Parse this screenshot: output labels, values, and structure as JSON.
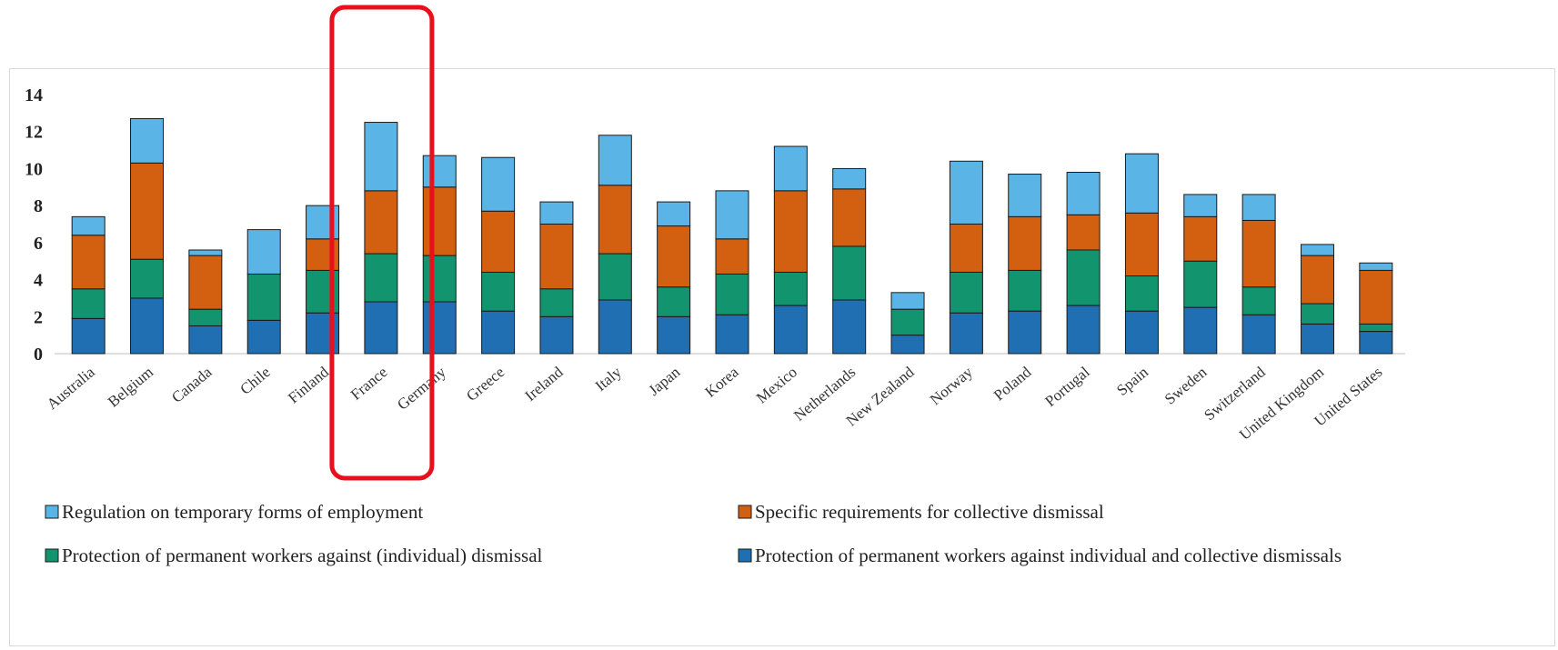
{
  "chart_data": {
    "type": "bar",
    "stacked": true,
    "title": "",
    "xlabel": "",
    "ylabel": "",
    "ylim": [
      0,
      14
    ],
    "yticks": [
      0,
      2,
      4,
      6,
      8,
      10,
      12,
      14
    ],
    "grid": false,
    "legend_position": "bottom",
    "highlight": {
      "category": "France",
      "style": "red rounded rectangle",
      "color": "#e8101a"
    },
    "categories": [
      "Australia",
      "Belgium",
      "Canada",
      "Chile",
      "Finland",
      "France",
      "Germany",
      "Greece",
      "Ireland",
      "Italy",
      "Japan",
      "Korea",
      "Mexico",
      "Netherlands",
      "New Zealand",
      "Norway",
      "Poland",
      "Portugal",
      "Spain",
      "Sweden",
      "Switzerland",
      "United Kingdom",
      "United States"
    ],
    "series": [
      {
        "name": "Protection of permanent workers against individual and collective dismissals",
        "color": "#1f6fb2",
        "values": [
          1.9,
          3.0,
          1.5,
          1.8,
          2.2,
          2.8,
          2.8,
          2.3,
          2.0,
          2.9,
          2.0,
          2.1,
          2.6,
          2.9,
          1.0,
          2.2,
          2.3,
          2.6,
          2.3,
          2.5,
          2.1,
          1.6,
          1.2
        ]
      },
      {
        "name": "Protection of permanent workers against (individual) dismissal",
        "color": "#12956f",
        "values": [
          1.6,
          2.1,
          0.9,
          2.5,
          2.3,
          2.6,
          2.5,
          2.1,
          1.5,
          2.5,
          1.6,
          2.2,
          1.8,
          2.9,
          1.4,
          2.2,
          2.2,
          3.0,
          1.9,
          2.5,
          1.5,
          1.1,
          0.4
        ]
      },
      {
        "name": "Specific requirements for collective dismissal",
        "color": "#d35f11",
        "values": [
          2.9,
          5.2,
          2.9,
          0.0,
          1.7,
          3.4,
          3.7,
          3.3,
          3.5,
          3.7,
          3.3,
          1.9,
          4.4,
          3.1,
          0.0,
          2.6,
          2.9,
          1.9,
          3.4,
          2.4,
          3.6,
          2.6,
          2.9
        ]
      },
      {
        "name": "Regulation on temporary forms of employment",
        "color": "#5ab4e6",
        "values": [
          1.0,
          2.4,
          0.3,
          2.4,
          1.8,
          3.7,
          1.7,
          2.9,
          1.2,
          2.7,
          1.3,
          2.6,
          2.4,
          1.1,
          0.9,
          3.4,
          2.3,
          2.3,
          3.2,
          1.2,
          1.4,
          0.6,
          0.4
        ]
      }
    ]
  }
}
